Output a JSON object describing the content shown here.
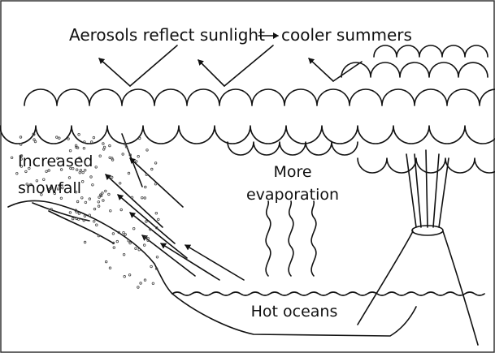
{
  "caption": {
    "cause": "Aerosols reflect sunlight",
    "effect": "cooler summers"
  },
  "labels": {
    "snowfall": [
      "Increased",
      "snowfall"
    ],
    "evaporation": [
      "More",
      "evaporation"
    ],
    "oceans": "Hot oceans"
  }
}
